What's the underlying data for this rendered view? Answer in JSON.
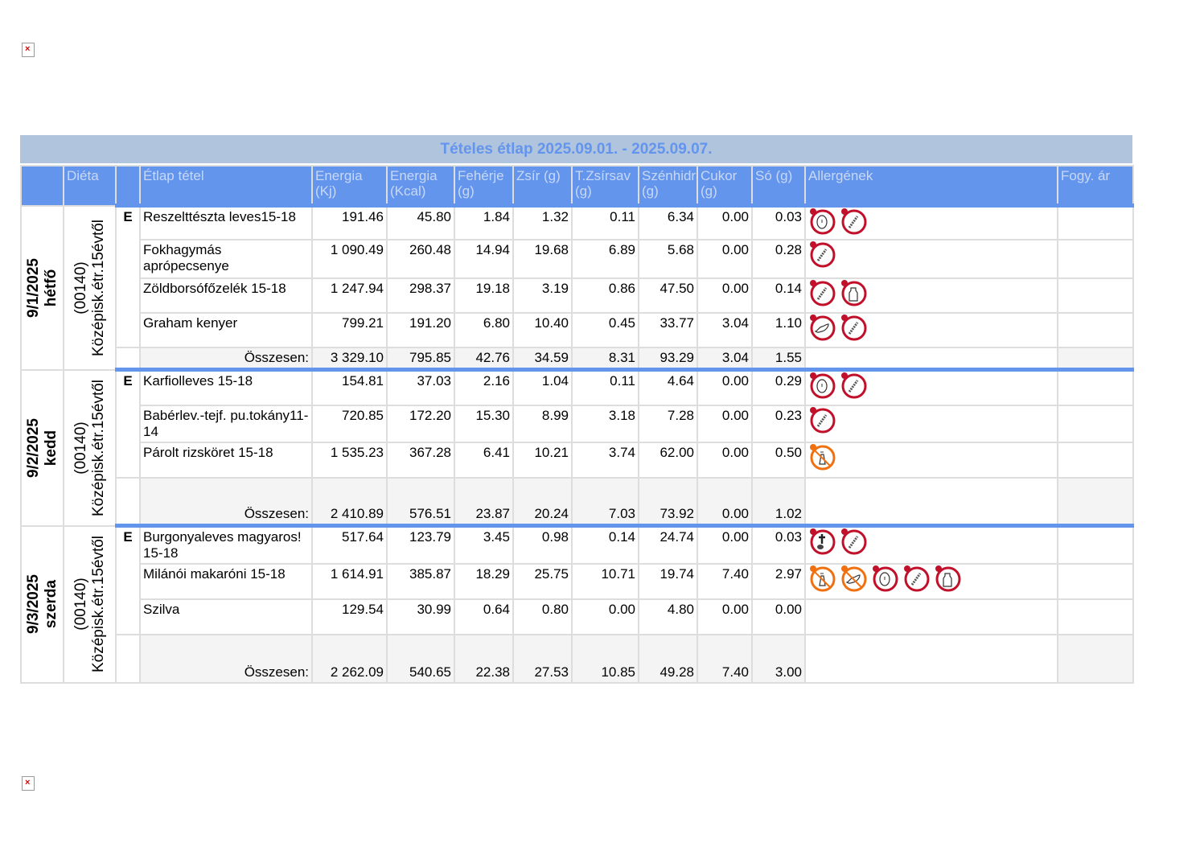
{
  "title": "Tételes étlap 2025.09.01. - 2025.09.07.",
  "headers": [
    "",
    "Diéta",
    "",
    "Étlap tétel",
    "Energia (Kj)",
    "Energia (Kcal)",
    "Fehérje (g)",
    "Zsír (g)",
    "T.Zsírsav (g)",
    "Szénhidrát (g)",
    "Cukor (g)",
    "Só (g)",
    "Allergének",
    "Fogy. ár"
  ],
  "total_label": "Összesen:",
  "colors": {
    "header": "#6495ed",
    "title_bg": "#b0c4de",
    "allergen": "#c0102a",
    "trace": "#f07010"
  },
  "days": [
    {
      "date": "9/1/2025",
      "weekday": "hétfő",
      "diet_code": "(00140)",
      "diet": "Középisk.étr.15évtől",
      "meal": "E",
      "items": [
        {
          "name": "Reszelttészta leves15-18",
          "v": [
            "191.46",
            "45.80",
            "1.84",
            "1.32",
            "0.11",
            "6.34",
            "0.00",
            "0.03"
          ],
          "allergens": [
            "egg",
            "gluten"
          ]
        },
        {
          "name": "Fokhagymás aprópecsenye",
          "v": [
            "1 090.49",
            "260.48",
            "14.94",
            "19.68",
            "6.89",
            "5.68",
            "0.00",
            "0.28"
          ],
          "allergens": [
            "gluten"
          ]
        },
        {
          "name": "Zöldborsófőzelék  15-18",
          "v": [
            "1 247.94",
            "298.37",
            "19.18",
            "3.19",
            "0.86",
            "47.50",
            "0.00",
            "0.14"
          ],
          "allergens": [
            "gluten",
            "milk"
          ]
        },
        {
          "name": "Graham kenyer",
          "v": [
            "799.21",
            "191.20",
            "6.80",
            "10.40",
            "0.45",
            "33.77",
            "3.04",
            "1.10"
          ],
          "allergens": [
            "soy",
            "gluten"
          ]
        }
      ],
      "total": [
        "3 329.10",
        "795.85",
        "42.76",
        "34.59",
        "8.31",
        "93.29",
        "3.04",
        "1.55"
      ]
    },
    {
      "date": "9/2/2025",
      "weekday": "kedd",
      "diet_code": "(00140)",
      "diet": "Középisk.étr.15évtől",
      "meal": "E",
      "items": [
        {
          "name": "Karfiolleves  15-18",
          "v": [
            "154.81",
            "37.03",
            "2.16",
            "1.04",
            "0.11",
            "4.64",
            "0.00",
            "0.29"
          ],
          "allergens": [
            "egg",
            "gluten"
          ]
        },
        {
          "name": "Babérlev.-tejf. pu.tokány11-14",
          "v": [
            "720.85",
            "172.20",
            "15.30",
            "8.99",
            "3.18",
            "7.28",
            "0.00",
            "0.23"
          ],
          "allergens": [
            "gluten"
          ]
        },
        {
          "name": "Párolt rizsköret 15-18",
          "v": [
            "1 535.23",
            "367.28",
            "6.41",
            "10.21",
            "3.74",
            "62.00",
            "0.00",
            "0.50"
          ],
          "allergens": [
            "mustard-trace"
          ]
        }
      ],
      "total": [
        "2 410.89",
        "576.51",
        "23.87",
        "20.24",
        "7.03",
        "73.92",
        "0.00",
        "1.02"
      ]
    },
    {
      "date": "9/3/2025",
      "weekday": "szerda",
      "diet_code": "(00140)",
      "diet": "Középisk.étr.15évtől",
      "meal": "E",
      "items": [
        {
          "name": "Burgonyaleves magyaros! 15-18",
          "v": [
            "517.64",
            "123.79",
            "3.45",
            "0.98",
            "0.14",
            "24.74",
            "0.00",
            "0.03"
          ],
          "allergens": [
            "celery",
            "gluten"
          ]
        },
        {
          "name": "Milánói  makaróni 15-18",
          "v": [
            "1 614.91",
            "385.87",
            "18.29",
            "25.75",
            "10.71",
            "19.74",
            "7.40",
            "2.97"
          ],
          "allergens": [
            "mustard-trace",
            "soy-trace",
            "egg",
            "gluten",
            "milk"
          ]
        },
        {
          "name": "Szilva",
          "v": [
            "129.54",
            "30.99",
            "0.64",
            "0.80",
            "0.00",
            "4.80",
            "0.00",
            "0.00"
          ],
          "allergens": []
        }
      ],
      "total": [
        "2 262.09",
        "540.65",
        "22.38",
        "27.53",
        "10.85",
        "49.28",
        "7.40",
        "3.00"
      ]
    }
  ]
}
